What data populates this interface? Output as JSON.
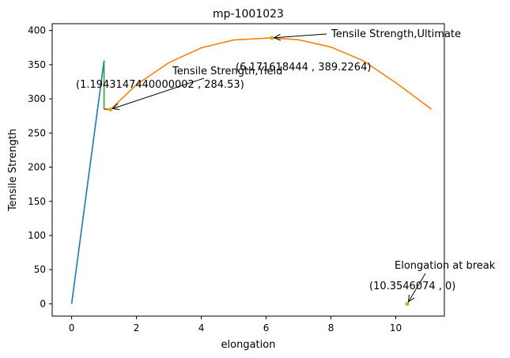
{
  "chart_data": {
    "type": "line",
    "title": "mp-1001023",
    "xlabel": "elongation",
    "ylabel": "Tensile Strength",
    "xlim": [
      -0.6,
      11.5
    ],
    "ylim": [
      -18,
      410
    ],
    "x_ticks": [
      0,
      2,
      4,
      6,
      8,
      10
    ],
    "y_ticks": [
      0,
      50,
      100,
      150,
      200,
      250,
      300,
      350,
      400
    ],
    "grid": false,
    "series": [
      {
        "color": "#1f77b4",
        "points": [
          [
            0,
            0
          ],
          [
            1.0,
            356
          ]
        ]
      },
      {
        "color": "#2ca02c",
        "points": [
          [
            1.0,
            356
          ],
          [
            1.0,
            285
          ]
        ]
      },
      {
        "color": "#d62728",
        "points": [
          [
            1.0,
            285
          ],
          [
            1.194314744,
            284.53
          ]
        ]
      },
      {
        "color": "#ff7f0e",
        "points": [
          [
            1.2,
            284.5
          ],
          [
            2.0,
            320.8
          ],
          [
            3.0,
            353.0
          ],
          [
            4.0,
            374.7
          ],
          [
            5.0,
            386.2
          ],
          [
            6.17,
            389.2
          ],
          [
            7.0,
            386.5
          ],
          [
            8.0,
            375.8
          ],
          [
            9.0,
            355.7
          ],
          [
            10.0,
            323.7
          ],
          [
            11.1,
            285.0
          ]
        ]
      }
    ],
    "points": [
      {
        "name": "yield",
        "x": 1.194314744,
        "y": 284.53,
        "color": "#bcbd22"
      },
      {
        "name": "ultimate",
        "x": 6.171618444,
        "y": 389.2264,
        "color": "#bcbd22"
      },
      {
        "name": "break",
        "x": 10.3546074,
        "y": 0,
        "color": "#bcbd22"
      }
    ],
    "annotations": [
      {
        "name": "yield",
        "label": "Tensile Strength,Yield",
        "value": "(1.1943147440000002 , 284.53)",
        "x": 1.194314744,
        "y": 284.53
      },
      {
        "name": "ultimate",
        "label": "Tensile Strength,Ultimate",
        "value": "(6.171618444 , 389.2264)",
        "x": 6.171618444,
        "y": 389.2264
      },
      {
        "name": "break",
        "label": "Elongation at break",
        "value": "(10.3546074 , 0)",
        "x": 10.3546074,
        "y": 0
      }
    ]
  }
}
